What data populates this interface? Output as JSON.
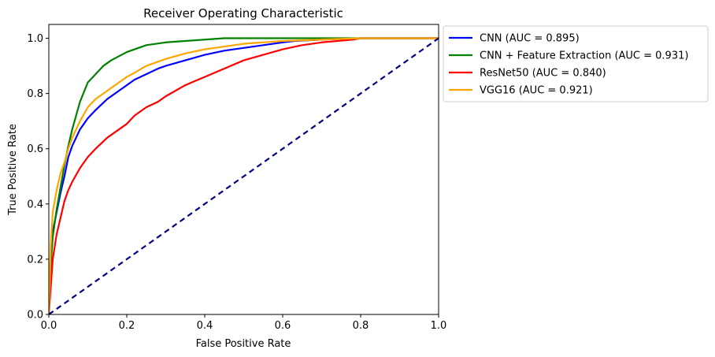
{
  "chart_data": {
    "type": "line",
    "title": "Receiver Operating Characteristic",
    "xlabel": "False Positive Rate",
    "ylabel": "True Positive Rate",
    "xlim": [
      0,
      1
    ],
    "ylim": [
      0,
      1.05
    ],
    "xticks": [
      "0.0",
      "0.2",
      "0.4",
      "0.6",
      "0.8",
      "1.0"
    ],
    "yticks": [
      "0.0",
      "0.2",
      "0.4",
      "0.6",
      "0.8",
      "1.0"
    ],
    "legend_position": "outside-upper-right",
    "grid": false,
    "series": [
      {
        "name": "CNN (AUC = 0.895)",
        "color": "#0000ff",
        "x": [
          0,
          0.005,
          0.01,
          0.02,
          0.03,
          0.04,
          0.05,
          0.06,
          0.08,
          0.1,
          0.12,
          0.15,
          0.18,
          0.2,
          0.22,
          0.25,
          0.28,
          0.3,
          0.35,
          0.4,
          0.45,
          0.5,
          0.55,
          0.6,
          0.63,
          0.7,
          0.8,
          1.0
        ],
        "y": [
          0,
          0.2,
          0.3,
          0.37,
          0.44,
          0.5,
          0.57,
          0.61,
          0.67,
          0.71,
          0.74,
          0.78,
          0.81,
          0.83,
          0.85,
          0.87,
          0.89,
          0.9,
          0.92,
          0.94,
          0.955,
          0.965,
          0.975,
          0.985,
          0.99,
          0.995,
          1.0,
          1.0
        ]
      },
      {
        "name": "CNN + Feature Extraction (AUC = 0.931)",
        "color": "#008000",
        "x": [
          0,
          0.005,
          0.01,
          0.02,
          0.03,
          0.04,
          0.05,
          0.06,
          0.08,
          0.1,
          0.12,
          0.14,
          0.16,
          0.18,
          0.2,
          0.22,
          0.25,
          0.3,
          0.35,
          0.4,
          0.45,
          0.5,
          0.6,
          0.7,
          0.8,
          1.0
        ],
        "y": [
          0,
          0.18,
          0.28,
          0.38,
          0.46,
          0.54,
          0.61,
          0.67,
          0.77,
          0.84,
          0.87,
          0.9,
          0.92,
          0.935,
          0.95,
          0.96,
          0.975,
          0.985,
          0.99,
          0.995,
          1.0,
          1.0,
          1.0,
          1.0,
          1.0,
          1.0
        ]
      },
      {
        "name": "ResNet50 (AUC = 0.840)",
        "color": "#ff0000",
        "x": [
          0,
          0.005,
          0.01,
          0.02,
          0.03,
          0.04,
          0.05,
          0.06,
          0.08,
          0.1,
          0.12,
          0.15,
          0.18,
          0.2,
          0.22,
          0.25,
          0.28,
          0.3,
          0.35,
          0.4,
          0.45,
          0.5,
          0.55,
          0.6,
          0.65,
          0.7,
          0.78,
          0.8,
          1.0
        ],
        "y": [
          0,
          0.1,
          0.2,
          0.29,
          0.35,
          0.41,
          0.45,
          0.48,
          0.53,
          0.57,
          0.6,
          0.64,
          0.67,
          0.69,
          0.72,
          0.75,
          0.77,
          0.79,
          0.83,
          0.86,
          0.89,
          0.92,
          0.94,
          0.96,
          0.975,
          0.985,
          0.995,
          1.0,
          1.0
        ]
      },
      {
        "name": "VGG16 (AUC = 0.921)",
        "color": "#ffa500",
        "x": [
          0,
          0.005,
          0.01,
          0.02,
          0.03,
          0.04,
          0.05,
          0.06,
          0.08,
          0.1,
          0.12,
          0.15,
          0.18,
          0.2,
          0.22,
          0.25,
          0.3,
          0.35,
          0.4,
          0.45,
          0.5,
          0.6,
          0.7,
          0.8,
          0.87,
          1.0
        ],
        "y": [
          0,
          0.25,
          0.37,
          0.45,
          0.51,
          0.55,
          0.6,
          0.64,
          0.7,
          0.75,
          0.78,
          0.81,
          0.84,
          0.86,
          0.875,
          0.9,
          0.925,
          0.945,
          0.96,
          0.97,
          0.98,
          0.99,
          0.995,
          1.0,
          1.0,
          1.0
        ]
      }
    ],
    "reference_line": {
      "x": [
        0,
        1
      ],
      "y": [
        0,
        1
      ],
      "color": "#000080",
      "style": "dashed"
    }
  }
}
